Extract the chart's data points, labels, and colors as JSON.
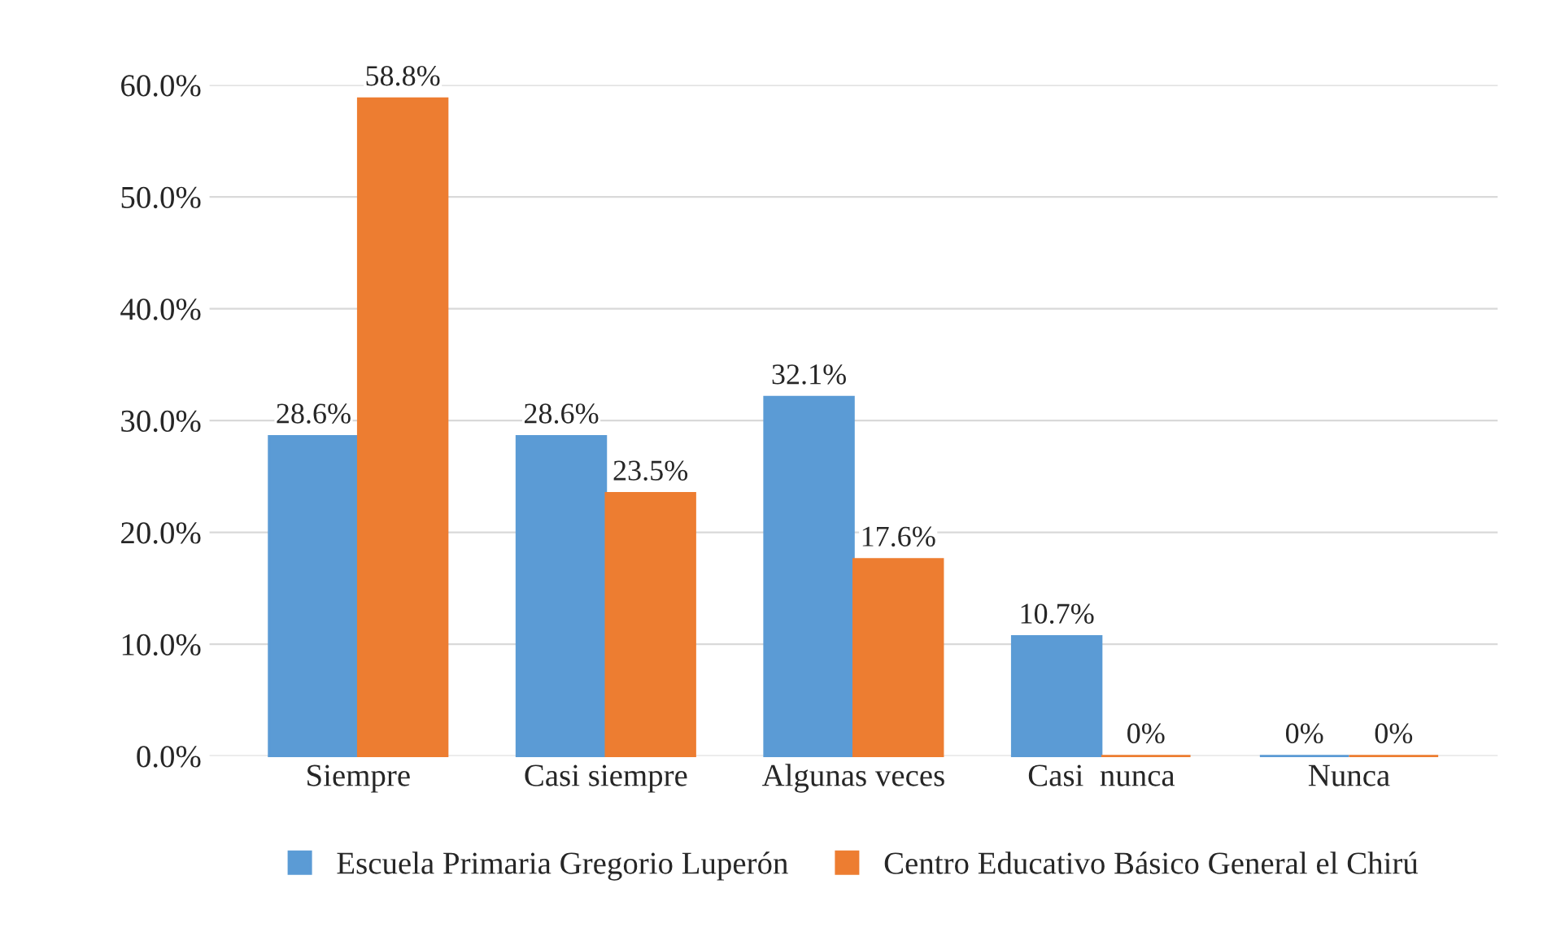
{
  "chart_data": {
    "type": "bar",
    "categories": [
      "Siempre",
      "Casi siempre",
      "Algunas veces",
      "Casi  nunca",
      "Nunca"
    ],
    "series": [
      {
        "name": "Escuela Primaria Gregorio Luperón",
        "color": "#5b9bd5",
        "values": [
          28.6,
          28.6,
          32.1,
          10.7,
          0
        ],
        "value_labels": [
          "28.6%",
          "28.6%",
          "32.1%",
          "10.7%",
          "0%"
        ]
      },
      {
        "name": "Centro Educativo Básico General el Chirú",
        "color": "#ed7d31",
        "values": [
          58.8,
          23.5,
          17.6,
          0,
          0
        ],
        "value_labels": [
          "58.8%",
          "23.5%",
          "17.6%",
          "0%",
          "0%"
        ]
      }
    ],
    "ylim": [
      0,
      60
    ],
    "yticks": [
      {
        "value": 0,
        "label": "0.0%"
      },
      {
        "value": 10,
        "label": "10.0%"
      },
      {
        "value": 20,
        "label": "20.0%"
      },
      {
        "value": 30,
        "label": "30.0%"
      },
      {
        "value": 40,
        "label": "40.0%"
      },
      {
        "value": 50,
        "label": "50.0%"
      },
      {
        "value": 60,
        "label": "60.0%"
      }
    ],
    "grid": "y",
    "legend": "bottom"
  }
}
